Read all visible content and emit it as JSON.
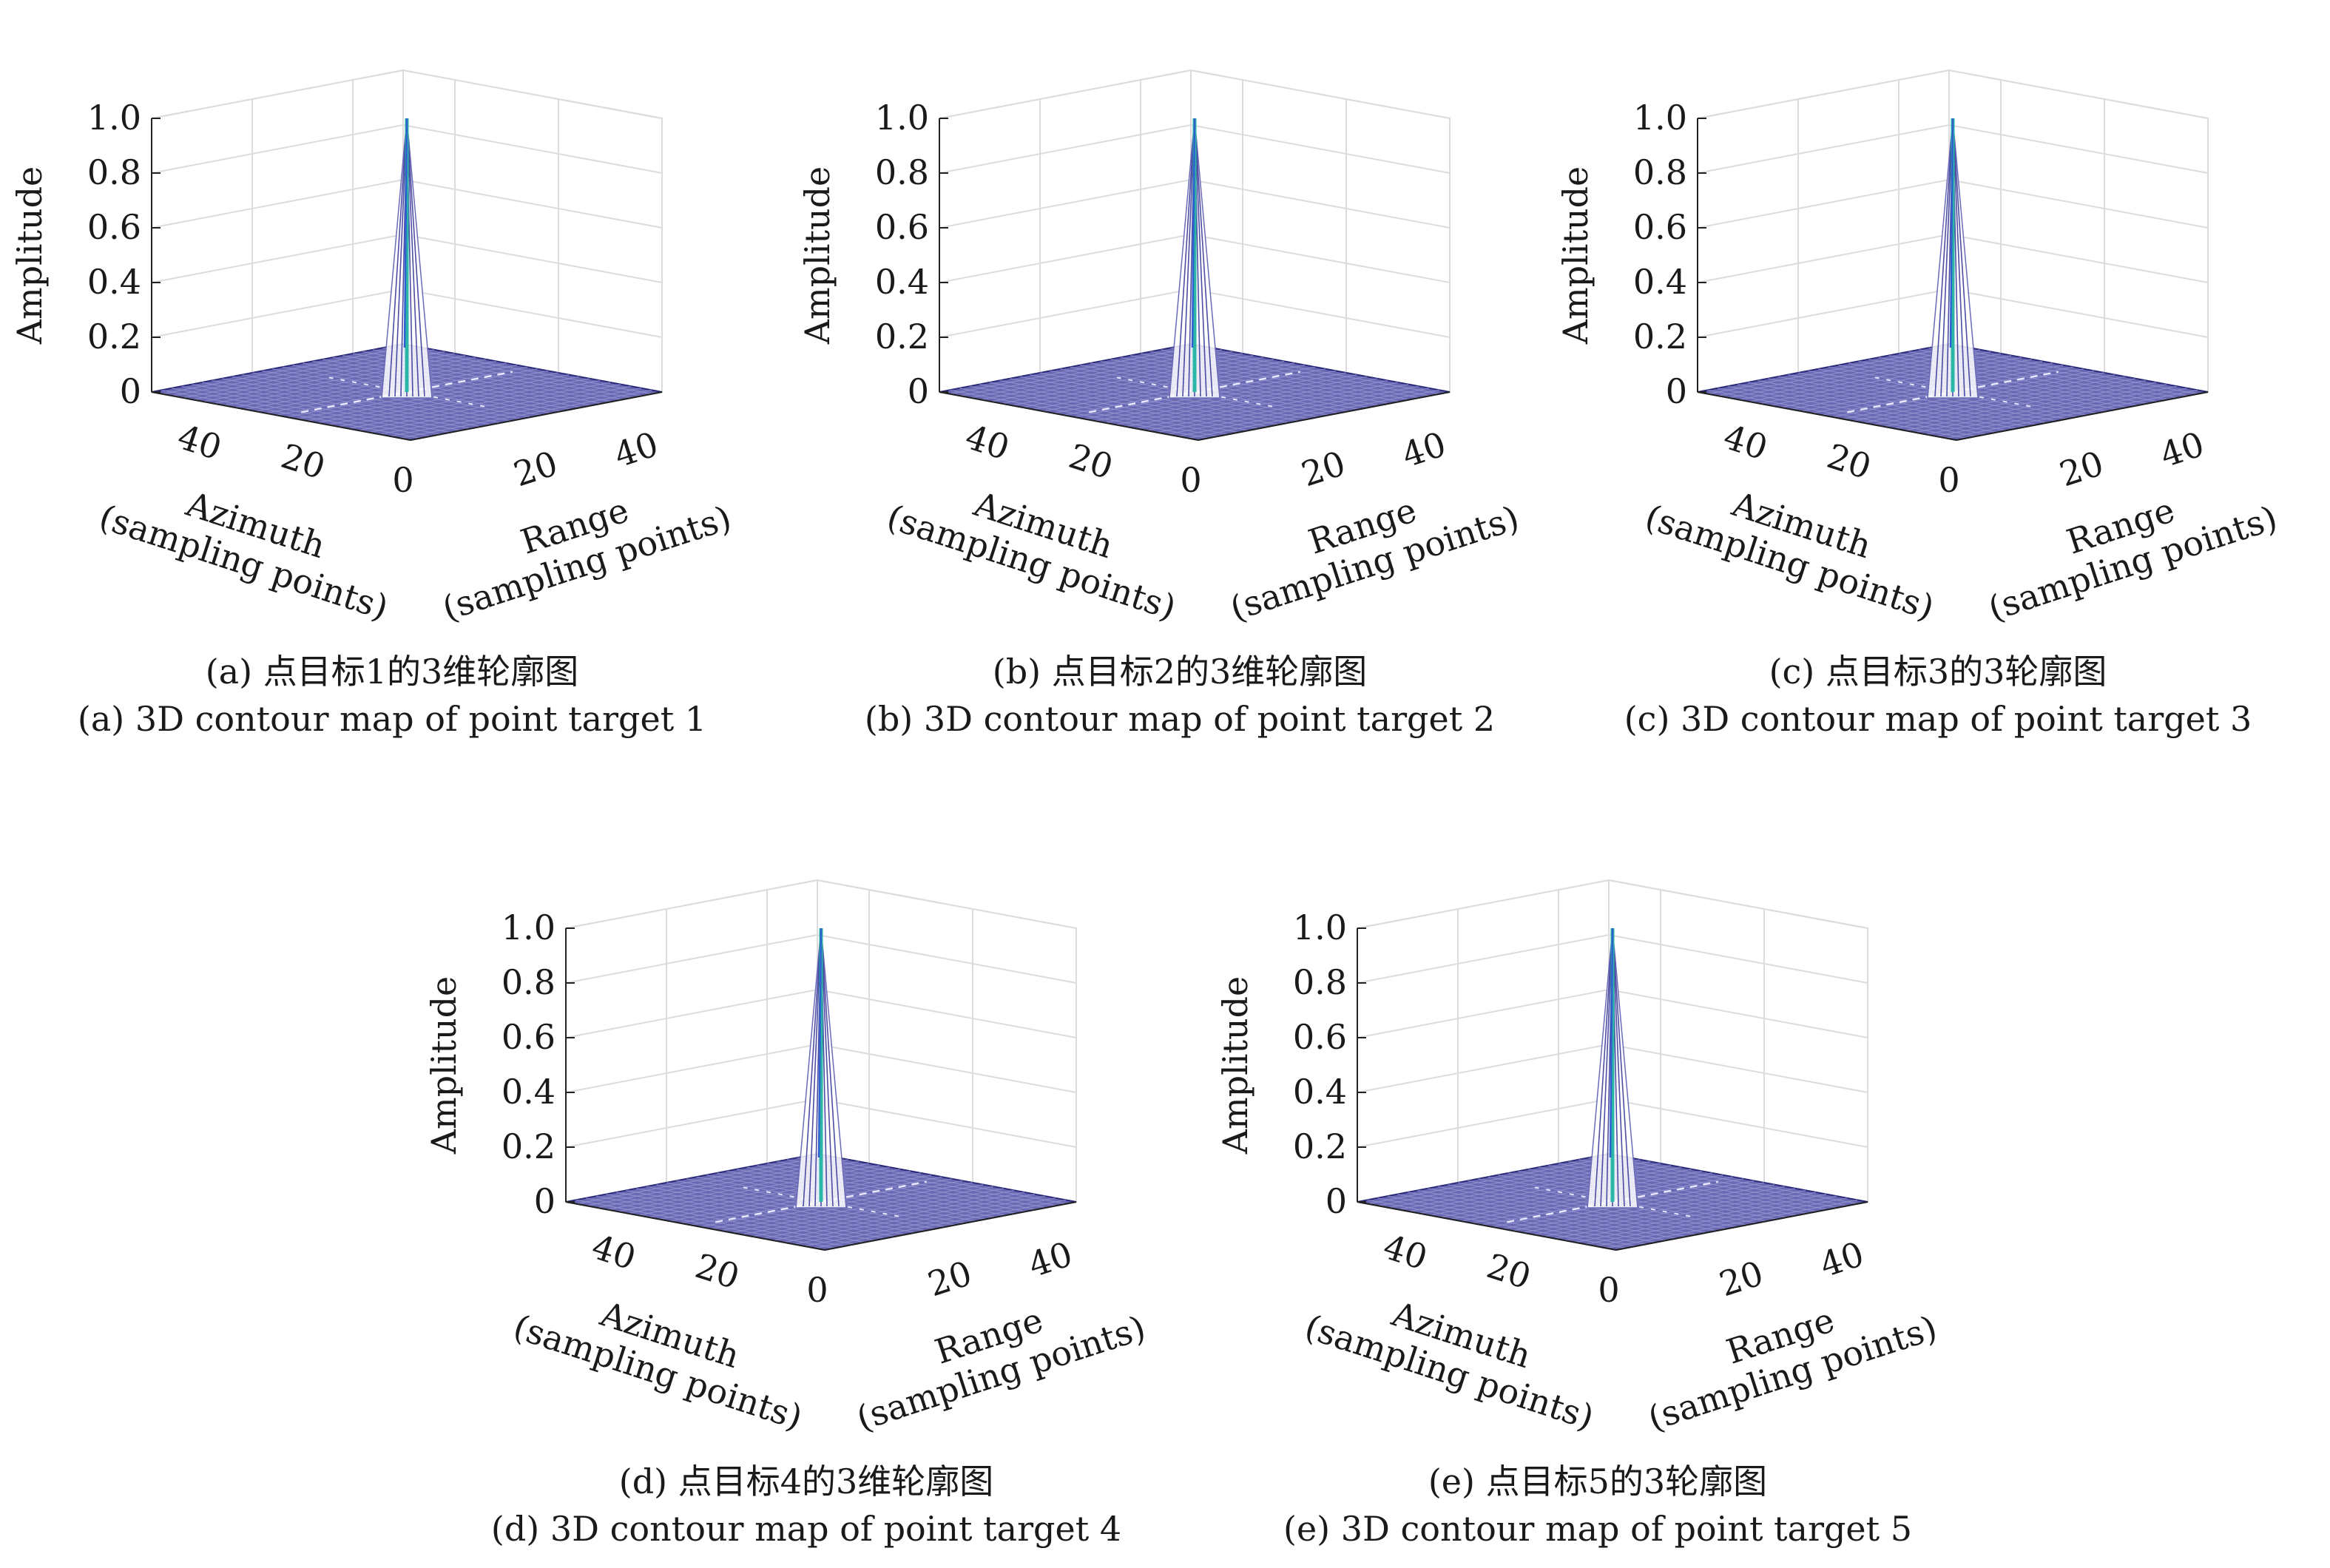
{
  "chart_data": [
    {
      "type": "surface3d",
      "caption_zh": "(a) 点目标1的3维轮廓图",
      "caption_en": "(a) 3D contour map of point target 1",
      "zlabel": "Amplitude",
      "xlabel": [
        "Azimuth",
        "(sampling points)"
      ],
      "ylabel": [
        "Range",
        "(sampling points)"
      ],
      "zticks": [
        "0",
        "0.2",
        "0.4",
        "0.6",
        "0.8",
        "1.0"
      ],
      "xticks": [
        "40",
        "20",
        "0"
      ],
      "yticks": [
        "20",
        "40"
      ],
      "zlim": [
        0,
        1.0
      ],
      "peak": {
        "azimuth": 25,
        "range": 25,
        "amplitude": 1.0
      },
      "colors": {
        "surface": "#3d3d9e",
        "peak": "#2bb7a8",
        "grid": "#dcdcdc"
      }
    },
    {
      "type": "surface3d",
      "caption_zh": "(b) 点目标2的3维轮廓图",
      "caption_en": "(b) 3D contour map of point target 2",
      "zlabel": "Amplitude",
      "xlabel": [
        "Azimuth",
        "(sampling points)"
      ],
      "ylabel": [
        "Range",
        "(sampling points)"
      ],
      "zticks": [
        "0",
        "0.2",
        "0.4",
        "0.6",
        "0.8",
        "1.0"
      ],
      "xticks": [
        "40",
        "20",
        "0"
      ],
      "yticks": [
        "20",
        "40"
      ],
      "zlim": [
        0,
        1.0
      ],
      "peak": {
        "azimuth": 25,
        "range": 25,
        "amplitude": 1.0
      },
      "colors": {
        "surface": "#3d3d9e",
        "peak": "#2bb7a8",
        "grid": "#dcdcdc"
      }
    },
    {
      "type": "surface3d",
      "caption_zh": "(c) 点目标3的3轮廓图",
      "caption_en": "(c) 3D contour map of point target 3",
      "zlabel": "Amplitude",
      "xlabel": [
        "Azimuth",
        "(sampling points)"
      ],
      "ylabel": [
        "Range",
        "(sampling points)"
      ],
      "zticks": [
        "0",
        "0.2",
        "0.4",
        "0.6",
        "0.8",
        "1.0"
      ],
      "xticks": [
        "40",
        "20",
        "0"
      ],
      "yticks": [
        "20",
        "40"
      ],
      "zlim": [
        0,
        1.0
      ],
      "peak": {
        "azimuth": 25,
        "range": 25,
        "amplitude": 1.0
      },
      "colors": {
        "surface": "#3d3d9e",
        "peak": "#2bb7a8",
        "grid": "#dcdcdc"
      }
    },
    {
      "type": "surface3d",
      "caption_zh": "(d) 点目标4的3维轮廓图",
      "caption_en": "(d) 3D contour map of point target 4",
      "zlabel": "Amplitude",
      "xlabel": [
        "Azimuth",
        "(sampling points)"
      ],
      "ylabel": [
        "Range",
        "(sampling points)"
      ],
      "zticks": [
        "0",
        "0.2",
        "0.4",
        "0.6",
        "0.8",
        "1.0"
      ],
      "xticks": [
        "40",
        "20",
        "0"
      ],
      "yticks": [
        "20",
        "40"
      ],
      "zlim": [
        0,
        1.0
      ],
      "peak": {
        "azimuth": 25,
        "range": 25,
        "amplitude": 1.0
      },
      "colors": {
        "surface": "#3d3d9e",
        "peak": "#2bb7a8",
        "grid": "#dcdcdc"
      }
    },
    {
      "type": "surface3d",
      "caption_zh": "(e) 点目标5的3轮廓图",
      "caption_en": "(e) 3D contour map of point target 5",
      "zlabel": "Amplitude",
      "xlabel": [
        "Azimuth",
        "(sampling points)"
      ],
      "ylabel": [
        "Range",
        "(sampling points)"
      ],
      "zticks": [
        "0",
        "0.2",
        "0.4",
        "0.6",
        "0.8",
        "1.0"
      ],
      "xticks": [
        "40",
        "20",
        "0"
      ],
      "yticks": [
        "20",
        "40"
      ],
      "zlim": [
        0,
        1.0
      ],
      "peak": {
        "azimuth": 25,
        "range": 25,
        "amplitude": 1.0
      },
      "colors": {
        "surface": "#3d3d9e",
        "peak": "#2bb7a8",
        "grid": "#dcdcdc"
      }
    }
  ]
}
